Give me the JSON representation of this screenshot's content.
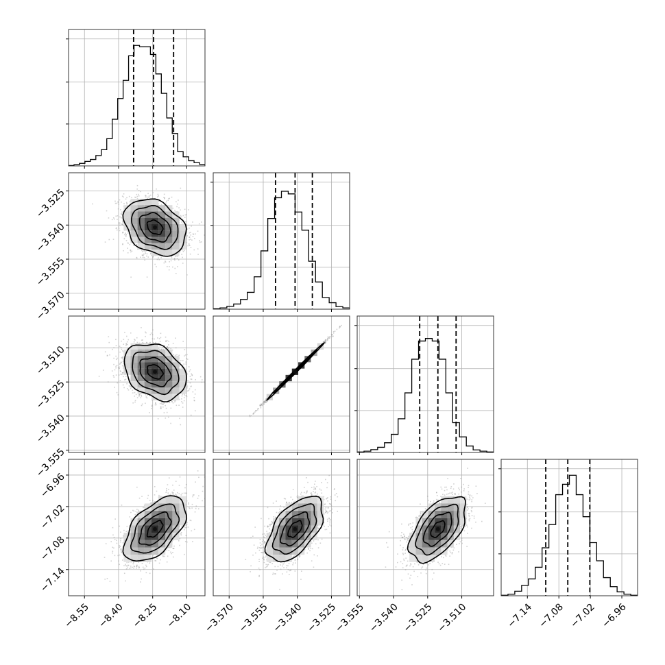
{
  "chart_data": {
    "type": "corner",
    "variables": [
      {
        "index": 0,
        "range": [
          -8.62,
          -8.02
        ],
        "ticks": [
          -8.55,
          -8.4,
          -8.25,
          -8.1
        ],
        "tick_labels": [
          "−8.55",
          "−8.40",
          "−8.25",
          "−8.10"
        ],
        "quantiles": [
          -8.334,
          -8.246,
          -8.158
        ],
        "hist": [
          0.003,
          0.009,
          0.02,
          0.035,
          0.05,
          0.08,
          0.125,
          0.21,
          0.36,
          0.52,
          0.66,
          0.85,
          0.93,
          0.92,
          0.92,
          0.86,
          0.71,
          0.56,
          0.37,
          0.25,
          0.11,
          0.07,
          0.04,
          0.025,
          0.012
        ],
        "peak": [
          -8.24,
          0.92
        ]
      },
      {
        "index": 1,
        "range": [
          -3.577,
          -3.517
        ],
        "ticks": [
          -3.57,
          -3.555,
          -3.54,
          -3.525
        ],
        "tick_labels": [
          "−3.570",
          "−3.555",
          "−3.540",
          "−3.525"
        ],
        "quantiles": [
          -3.5496,
          -3.541,
          -3.5334
        ],
        "hist": [
          0.004,
          0.01,
          0.022,
          0.04,
          0.075,
          0.13,
          0.25,
          0.45,
          0.7,
          0.86,
          0.91,
          0.89,
          0.75,
          0.61,
          0.37,
          0.21,
          0.09,
          0.05,
          0.02,
          0.01
        ],
        "peak": [
          -3.541,
          0.9
        ]
      },
      {
        "index": 2,
        "range": [
          -3.556,
          -3.496
        ],
        "ticks": [
          -3.555,
          -3.54,
          -3.525,
          -3.51
        ],
        "tick_labels": [
          "−3.555",
          "−3.540",
          "−3.525",
          "−3.510"
        ],
        "quantiles": [
          -3.5285,
          -3.5205,
          -3.5125
        ],
        "hist": [
          0.004,
          0.01,
          0.022,
          0.04,
          0.075,
          0.14,
          0.26,
          0.46,
          0.72,
          0.86,
          0.88,
          0.86,
          0.72,
          0.46,
          0.23,
          0.12,
          0.05,
          0.02,
          0.01,
          0.004
        ],
        "peak": [
          -3.52,
          0.88
        ]
      },
      {
        "index": 3,
        "range": [
          -7.19,
          -6.93
        ],
        "ticks": [
          -7.14,
          -7.08,
          -7.02,
          -6.96
        ],
        "tick_labels": [
          "−7.14",
          "−7.08",
          "−7.02",
          "−6.96"
        ],
        "quantiles": [
          -7.105,
          -7.063,
          -7.021
        ],
        "hist": [
          0.004,
          0.012,
          0.035,
          0.08,
          0.13,
          0.22,
          0.37,
          0.55,
          0.78,
          0.86,
          0.93,
          0.78,
          0.61,
          0.41,
          0.27,
          0.14,
          0.07,
          0.03,
          0.012,
          0.004
        ],
        "peak": [
          -7.063,
          0.93
        ]
      }
    ],
    "pairs": [
      {
        "row": 1,
        "col": 0,
        "mean": [
          -8.24,
          -3.541
        ],
        "sd": [
          0.068,
          0.0062
        ],
        "corr": -0.3
      },
      {
        "row": 2,
        "col": 0,
        "mean": [
          -8.24,
          -3.5205
        ],
        "sd": [
          0.068,
          0.0062
        ],
        "corr": -0.3
      },
      {
        "row": 2,
        "col": 1,
        "mean": [
          -3.541,
          -3.5205
        ],
        "sd": [
          0.0062,
          0.0062
        ],
        "corr": 0.998
      },
      {
        "row": 3,
        "col": 0,
        "mean": [
          -8.24,
          -7.063
        ],
        "sd": [
          0.068,
          0.031
        ],
        "corr": 0.55
      },
      {
        "row": 3,
        "col": 1,
        "mean": [
          -3.541,
          -7.063
        ],
        "sd": [
          0.0062,
          0.031
        ],
        "corr": 0.55
      },
      {
        "row": 3,
        "col": 2,
        "mean": [
          -3.5205,
          -7.063
        ],
        "sd": [
          0.0062,
          0.031
        ],
        "corr": 0.55
      }
    ],
    "contour_levels_sigma": [
      0.5,
      1.0,
      1.5,
      2.0
    ],
    "grid": true,
    "colors": {
      "hist": "#000000",
      "points": "#9a9a9a",
      "contour": "#000000",
      "quantile_line": "#000000"
    }
  }
}
